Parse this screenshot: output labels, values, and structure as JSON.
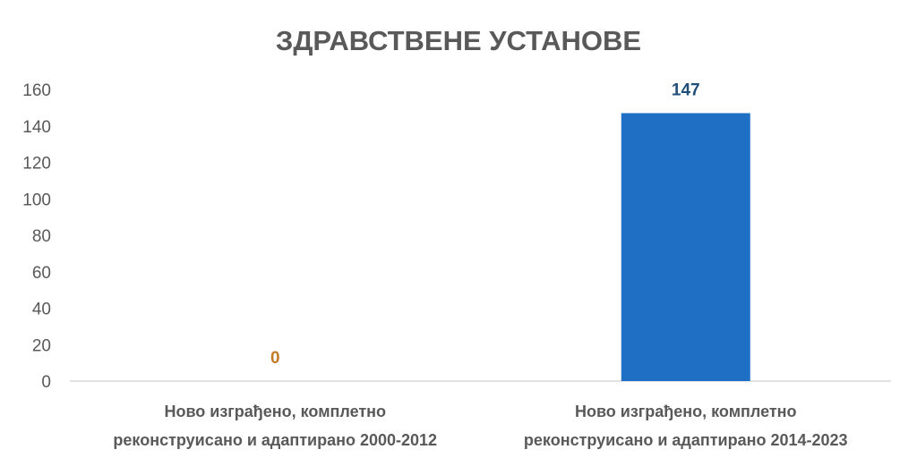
{
  "chart_data": {
    "type": "bar",
    "title": "ЗДРАВСТВЕНЕ УСТАНОВЕ",
    "categories": [
      [
        "Ново изграђено, комплетно",
        "реконструисано и адаптирано 2000-2012"
      ],
      [
        "Ново изграђено, комплетно",
        "реконструисано и адаптирано 2014-2023"
      ]
    ],
    "values": [
      0,
      147
    ],
    "data_labels": [
      "0",
      "147"
    ],
    "bar_colors": [
      "#E97C1B",
      "#1F6FC5"
    ],
    "data_label_colors": [
      "#C07A2A",
      "#1F4E79"
    ],
    "ylim": [
      0,
      160
    ],
    "yticks": [
      "0",
      "20",
      "40",
      "60",
      "80",
      "100",
      "120",
      "140",
      "160"
    ],
    "grid": false,
    "legend": "none"
  },
  "colors": {
    "text": "#595959",
    "axis": "#D9D9D9"
  }
}
